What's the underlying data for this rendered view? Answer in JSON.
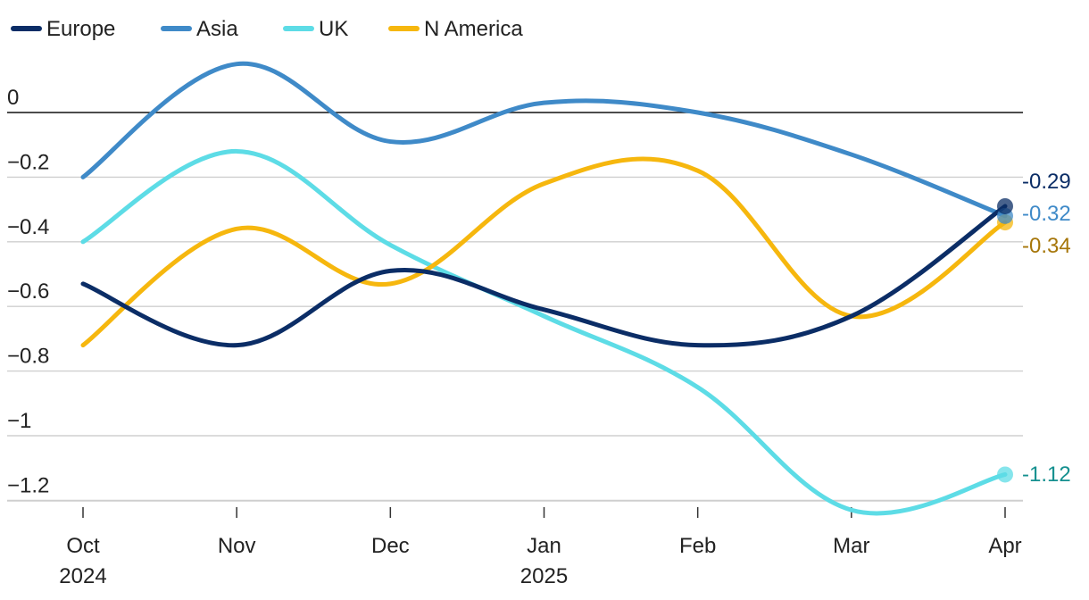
{
  "chart_data": {
    "type": "line",
    "title": "",
    "xlabel": "",
    "ylabel": "",
    "x": [
      "Oct",
      "Nov",
      "Dec",
      "Jan",
      "Feb",
      "Mar",
      "Apr"
    ],
    "x_year_labels": [
      {
        "month": "Oct",
        "year": "2024"
      },
      {
        "month": "Jan",
        "year": "2025"
      }
    ],
    "ylim": [
      -1.27,
      0.17
    ],
    "y_ticks": [
      {
        "value": 0,
        "label": "0"
      },
      {
        "value": -0.2,
        "label": "−0.2"
      },
      {
        "value": -0.4,
        "label": "−0.4"
      },
      {
        "value": -0.6,
        "label": "−0.6"
      },
      {
        "value": -0.8,
        "label": "−0.8"
      },
      {
        "value": -1.0,
        "label": "−1"
      },
      {
        "value": -1.2,
        "label": "−1.2"
      }
    ],
    "grid": true,
    "legend_position": "top-left",
    "series": [
      {
        "name": "Europe",
        "color": "#0b2d66",
        "label_color": "#0b2d66",
        "values": [
          -0.53,
          -0.72,
          -0.49,
          -0.61,
          -0.72,
          -0.63,
          -0.29
        ],
        "end_label": "-0.29"
      },
      {
        "name": "Asia",
        "color": "#3f8ac8",
        "label_color": "#3f8ac8",
        "values": [
          -0.2,
          0.15,
          -0.09,
          0.03,
          0.0,
          -0.13,
          -0.32
        ],
        "end_label": "-0.32"
      },
      {
        "name": "UK",
        "color": "#5ddce6",
        "label_color": "#15908f",
        "values": [
          -0.4,
          -0.12,
          -0.41,
          -0.63,
          -0.85,
          -1.23,
          -1.12
        ],
        "end_label": "-1.12"
      },
      {
        "name": "N America",
        "color": "#f6b70e",
        "label_color": "#a6760a",
        "values": [
          -0.72,
          -0.36,
          -0.53,
          -0.22,
          -0.18,
          -0.63,
          -0.34
        ],
        "end_label": "-0.34"
      }
    ]
  }
}
